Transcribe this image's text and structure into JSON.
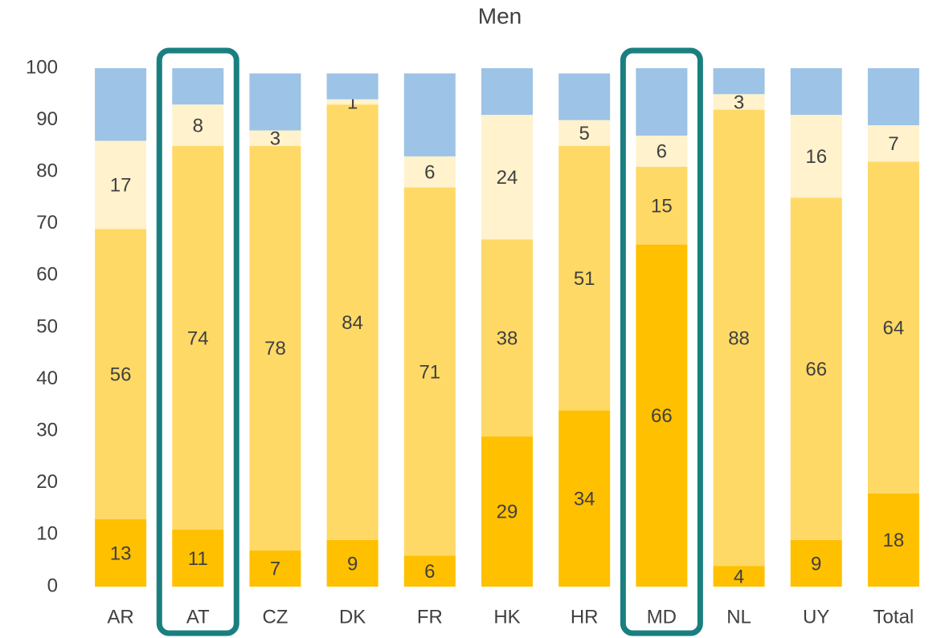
{
  "chart_data": {
    "type": "stacked_bar",
    "title": "Men",
    "categories": [
      "AR",
      "AT",
      "CZ",
      "DK",
      "FR",
      "HK",
      "HR",
      "MD",
      "NL",
      "UY",
      "Total"
    ],
    "series": [
      {
        "color": "#ffc000",
        "labels": true,
        "values": [
          13,
          11,
          7,
          9,
          6,
          29,
          34,
          66,
          4,
          9,
          18
        ]
      },
      {
        "color": "#ffd966",
        "labels": true,
        "values": [
          56,
          74,
          78,
          84,
          71,
          38,
          51,
          15,
          88,
          66,
          64
        ]
      },
      {
        "color": "#fff2cc",
        "labels": true,
        "values": [
          17,
          8,
          3,
          1,
          6,
          24,
          5,
          6,
          3,
          16,
          7
        ]
      },
      {
        "color": "#9dc3e6",
        "labels": false,
        "values": [
          14,
          7,
          11,
          5,
          16,
          9,
          9,
          13,
          5,
          9,
          11
        ]
      }
    ],
    "ylim": [
      0,
      100
    ],
    "yticks": [
      0,
      10,
      20,
      30,
      40,
      50,
      60,
      70,
      80,
      90,
      100
    ],
    "grid": false,
    "highlight": [
      1,
      7
    ],
    "highlight_color": "#1b7f80"
  }
}
